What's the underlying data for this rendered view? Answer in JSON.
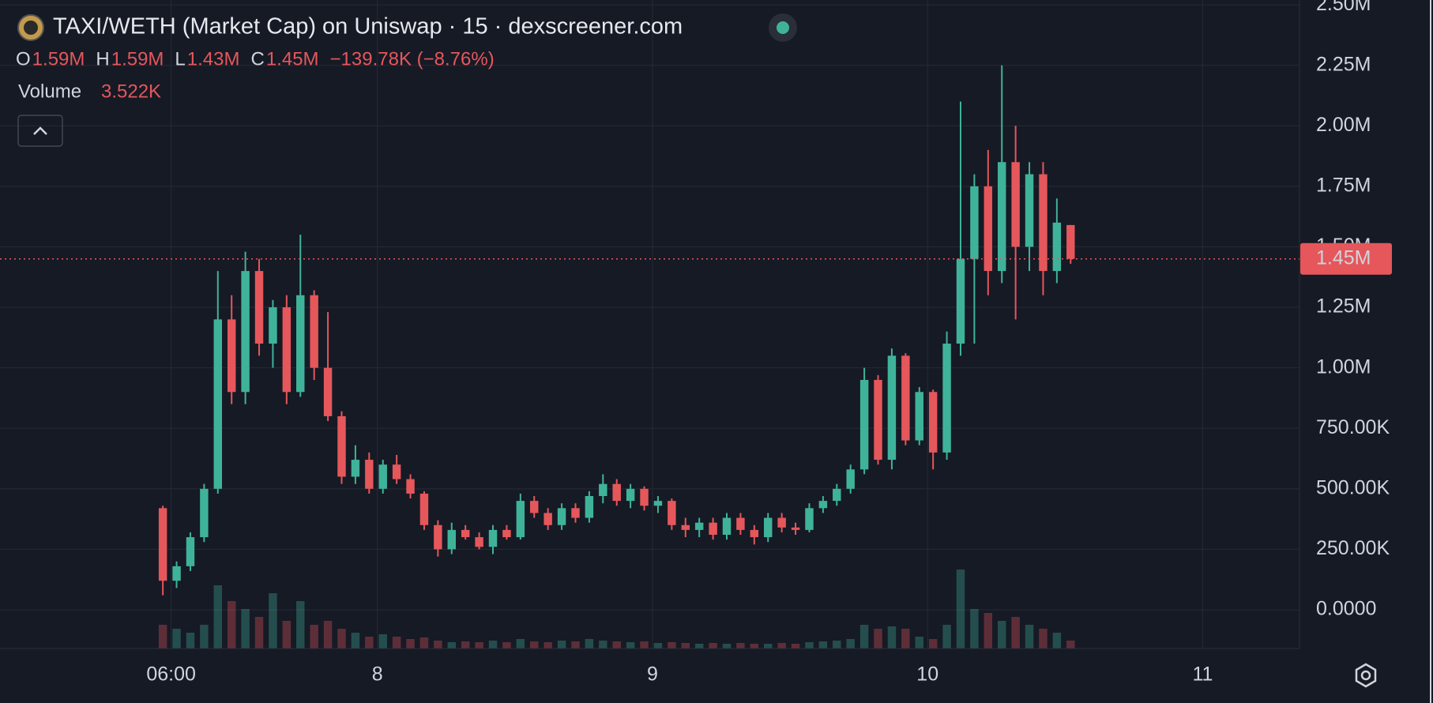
{
  "chart_data": {
    "type": "candlestick",
    "title": "TAXI/WETH (Market Cap) on Uniswap · 15 · dexscreener.com",
    "ohlc_legend": [
      {
        "key": "O",
        "value": "1.59M"
      },
      {
        "key": "H",
        "value": "1.59M"
      },
      {
        "key": "L",
        "value": "1.43M"
      },
      {
        "key": "C",
        "value": "1.45M"
      }
    ],
    "change": "−139.78K (−8.76%)",
    "volume_label": "Volume",
    "volume_value": "3.522K",
    "up_color": "#3fb39a",
    "down_color": "#e5575b",
    "last_price": {
      "value": 1450000,
      "label": "1.45M"
    },
    "x": [
      7.22,
      7.27,
      7.32,
      7.37,
      7.42,
      7.47,
      7.52,
      7.57,
      7.62,
      7.67,
      7.72,
      7.77,
      7.82,
      7.87,
      7.92,
      7.97,
      8.02,
      8.07,
      8.12,
      8.17,
      8.22,
      8.27,
      8.32,
      8.37,
      8.42,
      8.47,
      8.52,
      8.57,
      8.62,
      8.67,
      8.72,
      8.77,
      8.82,
      8.87,
      8.92,
      8.97,
      9.02,
      9.07,
      9.12,
      9.17,
      9.22,
      9.27,
      9.32,
      9.37,
      9.42,
      9.47,
      9.52,
      9.57,
      9.62,
      9.67,
      9.72,
      9.77,
      9.82,
      9.87,
      9.92,
      9.97,
      10.02,
      10.07,
      10.12,
      10.17,
      10.22,
      10.27,
      10.32,
      10.37,
      10.42,
      10.47,
      10.52
    ],
    "open": [
      420000,
      120000,
      180000,
      300000,
      500000,
      1200000,
      900000,
      1400000,
      1100000,
      1250000,
      900000,
      1300000,
      1000000,
      800000,
      550000,
      620000,
      500000,
      600000,
      540000,
      480000,
      350000,
      250000,
      330000,
      300000,
      260000,
      330000,
      300000,
      450000,
      400000,
      350000,
      420000,
      380000,
      470000,
      520000,
      450000,
      500000,
      430000,
      450000,
      350000,
      330000,
      360000,
      310000,
      380000,
      330000,
      300000,
      380000,
      340000,
      330000,
      420000,
      450000,
      500000,
      580000,
      950000,
      620000,
      1050000,
      700000,
      900000,
      650000,
      1100000,
      1450000,
      1750000,
      1400000,
      1850000,
      1500000,
      1800000,
      1400000,
      1590000
    ],
    "high": [
      430000,
      200000,
      320000,
      520000,
      1400000,
      1300000,
      1480000,
      1450000,
      1280000,
      1300000,
      1550000,
      1320000,
      1230000,
      820000,
      680000,
      650000,
      620000,
      640000,
      560000,
      490000,
      370000,
      360000,
      350000,
      320000,
      350000,
      350000,
      480000,
      470000,
      420000,
      440000,
      440000,
      490000,
      560000,
      540000,
      520000,
      510000,
      470000,
      460000,
      380000,
      380000,
      380000,
      400000,
      400000,
      350000,
      400000,
      400000,
      360000,
      440000,
      470000,
      520000,
      600000,
      1000000,
      970000,
      1080000,
      1060000,
      920000,
      910000,
      1150000,
      2100000,
      1800000,
      1900000,
      2250000,
      2000000,
      1850000,
      1850000,
      1700000,
      1590000
    ],
    "low": [
      60000,
      90000,
      160000,
      280000,
      480000,
      850000,
      850000,
      1050000,
      1000000,
      850000,
      880000,
      950000,
      780000,
      520000,
      520000,
      480000,
      480000,
      520000,
      460000,
      330000,
      220000,
      230000,
      290000,
      250000,
      230000,
      290000,
      290000,
      380000,
      330000,
      330000,
      360000,
      360000,
      440000,
      430000,
      420000,
      410000,
      400000,
      330000,
      300000,
      300000,
      290000,
      290000,
      310000,
      270000,
      280000,
      320000,
      310000,
      320000,
      400000,
      430000,
      480000,
      560000,
      600000,
      580000,
      680000,
      680000,
      580000,
      620000,
      1050000,
      1100000,
      1300000,
      1350000,
      1200000,
      1400000,
      1300000,
      1350000,
      1430000
    ],
    "close": [
      120000,
      180000,
      300000,
      500000,
      1200000,
      900000,
      1400000,
      1100000,
      1250000,
      900000,
      1300000,
      1000000,
      800000,
      550000,
      620000,
      500000,
      600000,
      540000,
      480000,
      350000,
      250000,
      330000,
      300000,
      260000,
      330000,
      300000,
      450000,
      400000,
      350000,
      420000,
      380000,
      470000,
      520000,
      450000,
      500000,
      430000,
      450000,
      350000,
      330000,
      360000,
      310000,
      380000,
      330000,
      300000,
      380000,
      340000,
      330000,
      420000,
      450000,
      500000,
      580000,
      950000,
      620000,
      1050000,
      700000,
      900000,
      650000,
      1100000,
      1450000,
      1750000,
      1400000,
      1850000,
      1500000,
      1800000,
      1400000,
      1600000,
      1450000
    ],
    "volume": [
      30,
      25,
      20,
      30,
      80,
      60,
      50,
      40,
      70,
      35,
      60,
      30,
      35,
      25,
      20,
      15,
      18,
      15,
      12,
      14,
      10,
      8,
      9,
      8,
      10,
      8,
      12,
      9,
      8,
      10,
      9,
      12,
      10,
      9,
      8,
      9,
      7,
      8,
      7,
      6,
      7,
      6,
      7,
      6,
      6,
      7,
      6,
      8,
      9,
      10,
      12,
      30,
      25,
      28,
      25,
      15,
      12,
      30,
      100,
      50,
      45,
      35,
      40,
      30,
      25,
      20,
      10
    ],
    "xlim": [
      6.628,
      11.352
    ],
    "xticks": [
      {
        "value": 7.25,
        "label": "06:00"
      },
      8,
      9,
      10,
      11
    ],
    "ylim": [
      -160000,
      2520000
    ],
    "yticks": [
      {
        "value": 0,
        "label": "0.0000"
      },
      {
        "value": 250000,
        "label": "250.00K"
      },
      {
        "value": 500000,
        "label": "500.00K"
      },
      {
        "value": 750000,
        "label": "750.00K"
      },
      {
        "value": 1000000,
        "label": "1.00M"
      },
      {
        "value": 1250000,
        "label": "1.25M"
      },
      {
        "value": 1500000,
        "label": "1.50M"
      },
      {
        "value": 1750000,
        "label": "1.75M"
      },
      {
        "value": 2000000,
        "label": "2.00M"
      },
      {
        "value": 2250000,
        "label": "2.25M"
      },
      {
        "value": 2500000,
        "label": "2.50M"
      }
    ],
    "grid": true
  }
}
